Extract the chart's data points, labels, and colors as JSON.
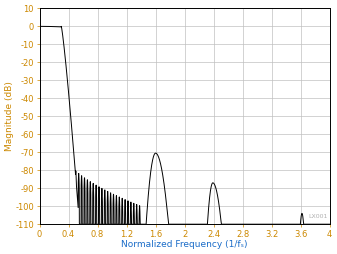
{
  "xlabel": "Normalized Frequency (1/fₛ)",
  "ylabel": "Magnitude (dB)",
  "xlim": [
    0,
    4
  ],
  "ylim": [
    -110,
    10
  ],
  "xticks": [
    0,
    0.4,
    0.8,
    1.2,
    1.6,
    2.0,
    2.4,
    2.8,
    3.2,
    3.6,
    4.0
  ],
  "yticks": [
    10,
    0,
    -10,
    -20,
    -30,
    -40,
    -50,
    -60,
    -70,
    -80,
    -90,
    -100,
    -110
  ],
  "grid_color": "#c0c0c0",
  "line_color": "#000000",
  "bg_color": "#ffffff",
  "label_color_x": "#1a6cc8",
  "label_color_y": "#cc8800",
  "tick_color_x": "#cc8800",
  "tick_color_y": "#cc8800",
  "watermark": "LX001",
  "watermark_color": "#b0b0b0"
}
